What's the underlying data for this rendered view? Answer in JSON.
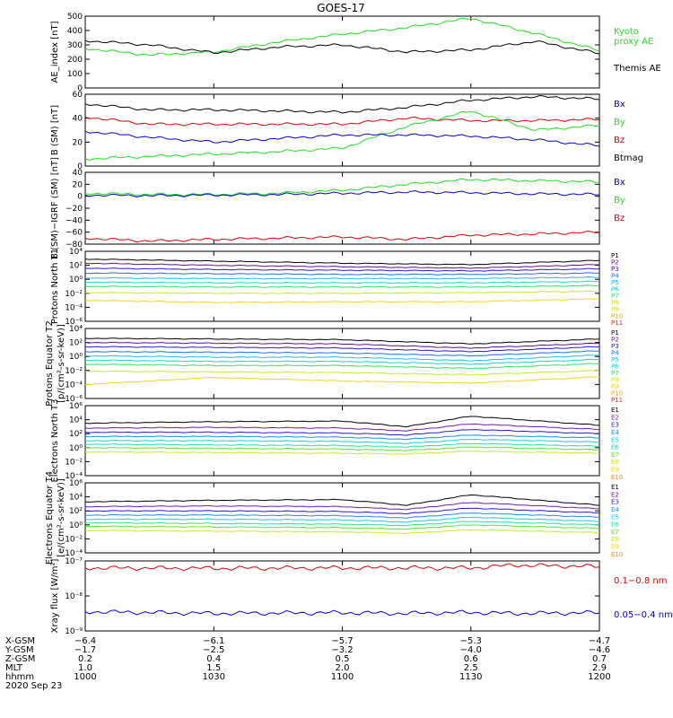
{
  "title": "GOES-17",
  "colors": {
    "black": "#000000",
    "green": "#22dd22",
    "red": "#dd0000",
    "blue": "#0000cc",
    "p_colors": [
      "#000000",
      "#6b0f8f",
      "#2d1ad0",
      "#1f6ef0",
      "#23b8f0",
      "#19d6c8",
      "#2fe06a",
      "#c8e82a",
      "#f7d31e",
      "#f2a415",
      "#ec2a10"
    ],
    "e_colors": [
      "#000000",
      "#7a17b0",
      "#2d1ad0",
      "#1f8ef0",
      "#21c8e8",
      "#25e0a0",
      "#5fe03a",
      "#c8e82a",
      "#f6d01e",
      "#f28a12",
      "#ec2a10"
    ]
  },
  "chart_data": [
    {
      "type": "line",
      "ylabel": "AE_index [nT]",
      "ylim": [
        0,
        500
      ],
      "y_ticks": [
        "0",
        "100",
        "200",
        "300",
        "400",
        "500"
      ],
      "x": [
        1000,
        1015,
        1030,
        1045,
        1100,
        1115,
        1130,
        1145,
        1200
      ],
      "series": [
        {
          "name": "Kyoto proxy AE",
          "color_key": "green",
          "values": [
            275,
            230,
            250,
            320,
            375,
            420,
            485,
            380,
            260
          ]
        },
        {
          "name": "Themis AE",
          "color_key": "black",
          "values": [
            330,
            300,
            245,
            285,
            300,
            250,
            265,
            325,
            240
          ]
        }
      ],
      "legend": [
        {
          "text": "Kyoto",
          "color_key": "green"
        },
        {
          "text": "proxy AE",
          "color_key": "green"
        },
        {
          "text": "Themis AE",
          "color_key": "black"
        }
      ]
    },
    {
      "type": "line",
      "ylabel": "B (SM) [nT]",
      "ylim": [
        0,
        60
      ],
      "y_ticks": [
        "0",
        "20",
        "40",
        "60"
      ],
      "x": [
        1000,
        1015,
        1030,
        1045,
        1100,
        1115,
        1130,
        1145,
        1200
      ],
      "series": [
        {
          "name": "Btmag",
          "color_key": "black",
          "values": [
            52,
            47,
            47,
            46,
            45,
            49,
            55,
            58,
            56
          ]
        },
        {
          "name": "Bz",
          "color_key": "red",
          "values": [
            41,
            35,
            35,
            35,
            35,
            40,
            38,
            38,
            39
          ]
        },
        {
          "name": "By",
          "color_key": "green",
          "values": [
            6,
            8,
            10,
            12,
            15,
            33,
            46,
            30,
            34
          ]
        },
        {
          "name": "Bx",
          "color_key": "blue",
          "values": [
            29,
            24,
            20,
            23,
            26,
            26,
            25,
            22,
            17
          ]
        }
      ],
      "legend": [
        {
          "text": "Bx",
          "color_key": "blue"
        },
        {
          "text": "By",
          "color_key": "green"
        },
        {
          "text": "Bz",
          "color_key": "red"
        },
        {
          "text": "Btmag",
          "color_key": "black"
        }
      ]
    },
    {
      "type": "line",
      "ylabel": "B (SM)−IGRF (SM) [nT]",
      "ylim": [
        -80,
        40
      ],
      "y_ticks": [
        "−80",
        "−60",
        "−40",
        "−20",
        "0",
        "20",
        "40"
      ],
      "x": [
        1000,
        1015,
        1030,
        1045,
        1100,
        1115,
        1130,
        1145,
        1200
      ],
      "series": [
        {
          "name": "By",
          "color_key": "green",
          "values": [
            5,
            3,
            3,
            5,
            10,
            20,
            28,
            26,
            24
          ]
        },
        {
          "name": "Bx",
          "color_key": "blue",
          "values": [
            2,
            1,
            2,
            3,
            5,
            7,
            6,
            4,
            3
          ]
        },
        {
          "name": "Bz",
          "color_key": "red",
          "values": [
            -70,
            -75,
            -72,
            -70,
            -68,
            -72,
            -65,
            -63,
            -60
          ]
        }
      ],
      "legend": [
        {
          "text": "Bx",
          "color_key": "blue"
        },
        {
          "text": "By",
          "color_key": "green"
        },
        {
          "text": "Bz",
          "color_key": "red"
        }
      ]
    },
    {
      "type": "line",
      "ylabel": "Protons North T1",
      "log": true,
      "ylim": [
        -6,
        4
      ],
      "y_ticks": [
        "10⁴",
        "10²",
        "10⁰",
        "10⁻²",
        "10⁻⁴",
        "10⁻⁶"
      ],
      "x": [
        1000,
        1030,
        1100,
        1130,
        1200
      ],
      "series_log": [
        [
          2.9,
          2.6,
          2.3,
          2.1,
          2.7
        ],
        [
          2.3,
          2.0,
          1.8,
          1.6,
          2.1
        ],
        [
          1.6,
          1.4,
          1.3,
          1.2,
          1.5
        ],
        [
          0.9,
          0.8,
          0.7,
          0.7,
          0.9
        ],
        [
          0.2,
          0.1,
          0.1,
          0.1,
          0.3
        ],
        [
          -0.4,
          -0.5,
          -0.5,
          -0.5,
          -0.3
        ],
        [
          -1.0,
          -1.1,
          -1.1,
          -1.1,
          -0.9
        ],
        [
          -1.9,
          -2.0,
          -2.0,
          -1.9,
          -1.7
        ],
        [
          -3.0,
          -3.3,
          -3.2,
          -3.2,
          -2.8
        ]
      ],
      "legend": [
        "P1",
        "P2",
        "P3",
        "P4",
        "P5",
        "P6",
        "P7",
        "P8",
        "P9",
        "P10",
        "P11"
      ]
    },
    {
      "type": "line",
      "ylabel": "Protons Equator T2",
      "ylabel2": "[p/(cm²-s-sr-keV)]",
      "log": true,
      "ylim": [
        -6,
        4
      ],
      "y_ticks": [
        "10⁴",
        "10²",
        "10⁰",
        "10⁻²",
        "10⁻⁴",
        "10⁻⁶"
      ],
      "x": [
        1000,
        1030,
        1100,
        1130,
        1200
      ],
      "series_log": [
        [
          2.6,
          2.5,
          2.4,
          1.8,
          2.5
        ],
        [
          2.0,
          1.9,
          1.8,
          1.2,
          1.9
        ],
        [
          1.4,
          1.3,
          1.2,
          0.7,
          1.4
        ],
        [
          0.7,
          0.6,
          0.5,
          0.1,
          0.8
        ],
        [
          0.1,
          -0.1,
          -0.1,
          -0.6,
          0.2
        ],
        [
          -0.5,
          -0.7,
          -0.7,
          -1.1,
          -0.4
        ],
        [
          -1.1,
          -1.3,
          -1.3,
          -1.7,
          -1.0
        ],
        [
          -2.1,
          -2.2,
          -2.3,
          -2.6,
          -2.0
        ],
        [
          -4.0,
          -3.0,
          -3.5,
          -3.8,
          -2.9
        ]
      ],
      "legend": [
        "P1",
        "P2",
        "P3",
        "P4",
        "P5",
        "P6",
        "P7",
        "P8",
        "P9",
        "P10",
        "P11"
      ]
    },
    {
      "type": "line",
      "ylabel": "Electrons North T3",
      "log": true,
      "ylim": [
        -4,
        6
      ],
      "y_ticks": [
        "10⁶",
        "10⁴",
        "10²",
        "10⁰",
        "10⁻²",
        "10⁻⁴"
      ],
      "x": [
        1000,
        1030,
        1100,
        1115,
        1130,
        1200
      ],
      "series_log": [
        [
          3.5,
          3.7,
          3.8,
          3.0,
          4.5,
          3.2
        ],
        [
          2.8,
          2.9,
          2.8,
          2.4,
          3.4,
          2.6
        ],
        [
          2.2,
          2.2,
          2.1,
          1.8,
          2.6,
          2.0
        ],
        [
          1.6,
          1.6,
          1.5,
          1.2,
          1.8,
          1.4
        ],
        [
          1.0,
          1.0,
          0.9,
          0.6,
          1.2,
          0.8
        ],
        [
          0.5,
          0.4,
          0.3,
          0.1,
          0.6,
          0.2
        ],
        [
          0.0,
          -0.1,
          -0.2,
          -0.4,
          0.1,
          -0.3
        ],
        [
          -0.6,
          -0.7,
          -0.8,
          -0.9,
          -0.5,
          -0.8
        ]
      ],
      "legend": [
        "E1",
        "E2",
        "E3",
        "E4",
        "E5",
        "E6",
        "E7",
        "E8",
        "E9",
        "E10"
      ]
    },
    {
      "type": "line",
      "ylabel": "Electrons Equator T4",
      "ylabel2": "[e/(cm²-s-sr-keV)]",
      "log": true,
      "ylim": [
        -4,
        6
      ],
      "y_ticks": [
        "10⁶",
        "10⁴",
        "10²",
        "10⁰",
        "10⁻²",
        "10⁻⁴"
      ],
      "x": [
        1000,
        1030,
        1100,
        1115,
        1130,
        1200
      ],
      "series_log": [
        [
          3.3,
          3.5,
          3.6,
          2.8,
          4.3,
          2.8
        ],
        [
          2.6,
          2.7,
          2.6,
          2.2,
          3.2,
          2.3
        ],
        [
          2.0,
          2.0,
          1.9,
          1.6,
          2.4,
          1.7
        ],
        [
          1.4,
          1.4,
          1.3,
          1.0,
          1.7,
          1.1
        ],
        [
          0.8,
          0.8,
          0.7,
          0.4,
          1.1,
          0.5
        ],
        [
          0.3,
          0.2,
          0.1,
          -0.1,
          0.5,
          0.0
        ],
        [
          -0.2,
          -0.3,
          -0.4,
          -0.6,
          0.0,
          -0.5
        ],
        [
          -0.8,
          -0.9,
          -1.0,
          -1.2,
          -0.7,
          -1.1
        ]
      ],
      "legend": [
        "E1",
        "E2",
        "E3",
        "E4",
        "E5",
        "E6",
        "E7",
        "E8",
        "E9",
        "E10"
      ]
    },
    {
      "type": "line",
      "ylabel": "Xray flux [W/m²]",
      "log": true,
      "ylim": [
        -9,
        -7
      ],
      "y_ticks": [
        "10⁻⁷",
        "10⁻⁸",
        "10⁻⁹"
      ],
      "x": [
        1000,
        1030,
        1100,
        1115,
        1130,
        1140,
        1200
      ],
      "series": [
        {
          "name": "0.1−0.8 nm",
          "color_key": "red",
          "log_values": [
            -7.2,
            -7.21,
            -7.2,
            -7.2,
            -7.2,
            -7.12,
            -7.16
          ]
        },
        {
          "name": "0.05−0.4 nm",
          "color_key": "blue",
          "log_values": [
            -8.45,
            -8.5,
            -8.48,
            -8.5,
            -8.47,
            -8.5,
            -8.48
          ]
        }
      ],
      "legend": [
        {
          "text": "0.1−0.8 nm",
          "color_key": "red"
        },
        {
          "text": "0.05−0.4 nm",
          "color_key": "blue"
        }
      ]
    }
  ],
  "x_axis": {
    "ticks": [
      "1000",
      "1030",
      "1100",
      "1130",
      "1200"
    ],
    "rows": [
      {
        "label": "X-GSM",
        "values": [
          "−6.4",
          "−6.1",
          "−5.7",
          "−5.3",
          "−4.7"
        ]
      },
      {
        "label": "Y-GSM",
        "values": [
          "−1.7",
          "−2.5",
          "−3.2",
          "−4.0",
          "−4.6"
        ]
      },
      {
        "label": "Z-GSM",
        "values": [
          "0.2",
          "0.4",
          "0.5",
          "0.6",
          "0.7"
        ]
      },
      {
        "label": "MLT",
        "values": [
          "1.0",
          "1.5",
          "2.0",
          "2.5",
          "2.9"
        ]
      },
      {
        "label": "hhmm",
        "values": [
          "1000",
          "1030",
          "1100",
          "1130",
          "1200"
        ]
      }
    ],
    "date": "2020 Sep 23"
  }
}
